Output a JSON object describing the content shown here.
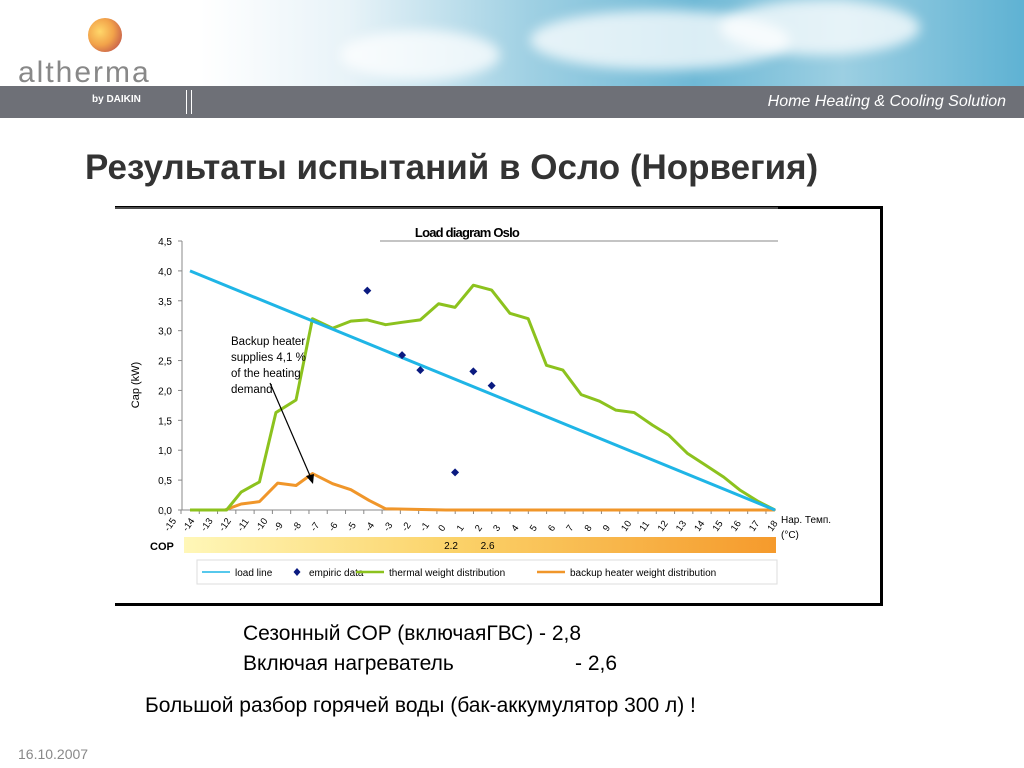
{
  "header": {
    "logo_text": "altherma",
    "logo_sub": "by DAIKIN",
    "slogan": "Home Heating & Cooling Solution"
  },
  "page_title": "Результаты испытаний в Осло (Норвегия)",
  "chart_data": {
    "type": "line",
    "title": "Load diagram Oslo",
    "ylabel": "Cap (kW)",
    "xlabel_line1": "Нар. Темп.",
    "xlabel_line2": "(°C)",
    "xlim": [
      -15,
      18
    ],
    "ylim": [
      0,
      4.5
    ],
    "yticks": [
      "0,0",
      "0,5",
      "1,0",
      "1,5",
      "2,0",
      "2,5",
      "3,0",
      "3,5",
      "4,0",
      "4,5"
    ],
    "xticks": [
      "-15",
      "-14",
      "-13",
      "-12",
      "-11",
      "-10",
      "-9",
      "-8",
      "-7",
      "-6",
      "-5",
      "-4",
      "-3",
      "-2",
      "-1",
      "0",
      "1",
      "2",
      "3",
      "4",
      "5",
      "6",
      "7",
      "8",
      "9",
      "10",
      "11",
      "12",
      "13",
      "14",
      "15",
      "16",
      "17",
      "18"
    ],
    "series": [
      {
        "name": "load line",
        "type": "line",
        "color": "#1fb5e6",
        "x": [
          -14,
          18
        ],
        "y": [
          4.0,
          0.0
        ]
      },
      {
        "name": "empiric data",
        "type": "scatter",
        "color": "#0a1a80",
        "x": [
          -4.3,
          -2.4,
          -1.4,
          0.5,
          1.5,
          2.5
        ],
        "y": [
          3.67,
          2.59,
          2.34,
          0.63,
          2.32,
          2.08
        ]
      },
      {
        "name": "thermal weight distribution",
        "type": "line",
        "color": "#8cc21e",
        "x": [
          -14,
          -12,
          -11.2,
          -10.2,
          -9.3,
          -8.2,
          -7.3,
          -6.2,
          -5.2,
          -4.3,
          -3.3,
          -2.4,
          -1.4,
          -0.4,
          0.5,
          1.5,
          2.5,
          3.5,
          4.5,
          5.5,
          6.4,
          7.4,
          8.4,
          9.3,
          10.3,
          11.3,
          12.2,
          13.2,
          14.2,
          15.2,
          16.1,
          17.1,
          18
        ],
        "y": [
          0,
          0,
          0.3,
          0.47,
          1.63,
          1.84,
          3.2,
          3.04,
          3.16,
          3.18,
          3.1,
          3.14,
          3.18,
          3.45,
          3.39,
          3.76,
          3.68,
          3.29,
          3.2,
          2.42,
          2.34,
          1.93,
          1.82,
          1.67,
          1.63,
          1.42,
          1.25,
          0.95,
          0.75,
          0.55,
          0.33,
          0.14,
          0
        ]
      },
      {
        "name": "backup heater weight distribution",
        "type": "line",
        "color": "#f0962a",
        "x": [
          -14,
          -12.1,
          -11.2,
          -10.2,
          -9.2,
          -8.2,
          -7.3,
          -6.2,
          -5.2,
          -4.2,
          -3.3,
          0,
          18
        ],
        "y": [
          0,
          0,
          0.1,
          0.14,
          0.45,
          0.41,
          0.61,
          0.44,
          0.34,
          0.16,
          0.02,
          0,
          0
        ]
      }
    ],
    "annotation": [
      "Backup heater",
      "supplies 4,1 %",
      "of the heating",
      "demand"
    ],
    "cop_bar": {
      "label": "COP",
      "values": [
        {
          "x": 0.5,
          "text": "2.2"
        },
        {
          "x": 2.5,
          "text": "2.6"
        }
      ]
    },
    "legend_position": "bottom"
  },
  "notes": {
    "line1": "Сезонный COP (включаяГВС) - 2,8",
    "line2_label": "Включая нагреватель",
    "line2_value": "- 2,6",
    "line3": "Большой разбор горячей воды (бак-аккумулятор 300 л) !"
  },
  "footer_date": "16.10.2007"
}
